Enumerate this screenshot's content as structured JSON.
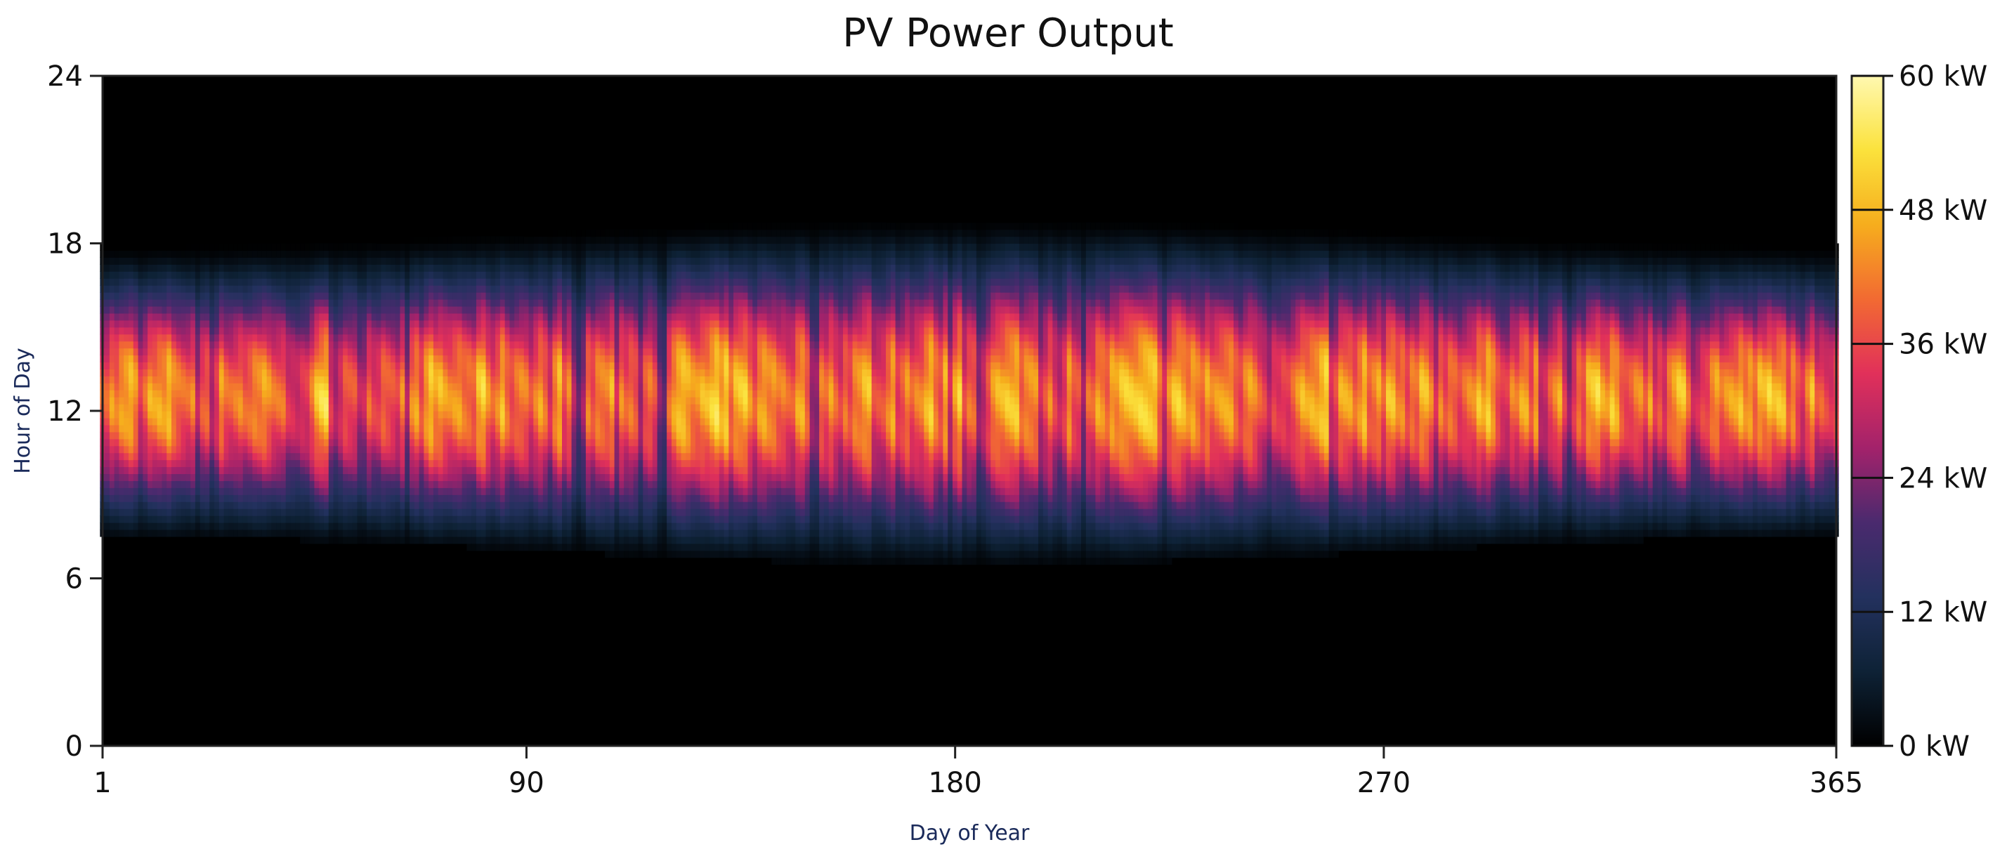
{
  "chart_data": {
    "type": "heatmap",
    "title": "PV Power Output",
    "xlabel": "Day of Year",
    "ylabel": "Hour of Day",
    "xlim": [
      1,
      365
    ],
    "ylim": [
      0,
      24
    ],
    "x_ticks": [
      1,
      90,
      180,
      270,
      365
    ],
    "y_ticks": [
      0,
      6,
      12,
      18,
      24
    ],
    "colorbar": {
      "min": 0,
      "max": 60,
      "unit": "kW",
      "ticks": [
        0,
        12,
        24,
        36,
        48,
        60
      ],
      "tick_labels": [
        "0 kW",
        "12 kW",
        "24 kW",
        "36 kW",
        "48 kW",
        "60 kW"
      ],
      "colormap": "inferno-like",
      "stops": [
        "#000000",
        "#0e2236",
        "#23315e",
        "#4a2a6e",
        "#a3226b",
        "#e1305a",
        "#f26a32",
        "#f6ad1d",
        "#fbe23c",
        "#fff8b0"
      ]
    },
    "pattern": {
      "sunrise_hour_winter": 7.5,
      "sunrise_hour_summer": 6.5,
      "sunset_hour_winter": 18.3,
      "sunset_hour_summer": 19.3,
      "peak_hour": 12.5,
      "peak_power_kW": 56
    }
  }
}
